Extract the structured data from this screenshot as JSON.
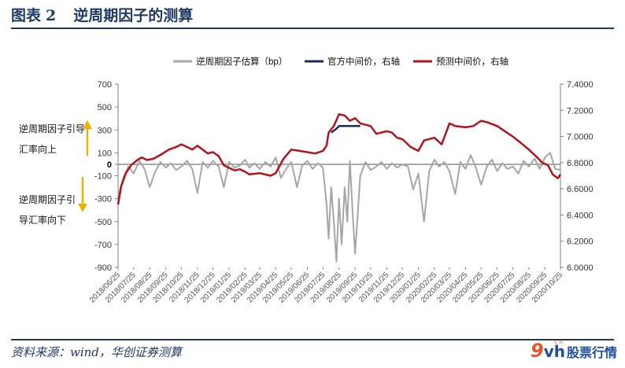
{
  "figure": {
    "label": "图表",
    "number": "2",
    "title": "逆周期因子的测算"
  },
  "source": "资料来源：wind，华创证券测算",
  "brand": {
    "logo_mark": "9",
    "logo_vh": "vh",
    "logo_cn": ".cn",
    "name": "股票行情"
  },
  "annotations": {
    "up": [
      "逆周期因子引导",
      "汇率向上"
    ],
    "down": [
      "逆周期因子引",
      "导汇率向下"
    ]
  },
  "colors": {
    "factor": "#a6a6a6",
    "official": "#1f2a5c",
    "forecast": "#b3121f",
    "arrow": "#f0b000"
  },
  "chart_data": {
    "type": "line",
    "title": "",
    "legend_position": "top",
    "grid": false,
    "dual_axis": true,
    "ylim": [
      -900,
      700
    ],
    "y_ticks": [
      -900,
      -700,
      -500,
      -300,
      -100,
      0,
      100,
      300,
      500,
      700
    ],
    "y2lim": [
      6.0,
      7.4
    ],
    "y2_ticks": [
      "6.0000",
      "6.2000",
      "6.4000",
      "6.6000",
      "6.8000",
      "7.0000",
      "7.2000",
      "7.4000"
    ],
    "x_ticks": [
      "2018/06/25",
      "2018/07/25",
      "2018/08/25",
      "2018/09/25",
      "2018/10/25",
      "2018/11/25",
      "2018/12/25",
      "2019/01/25",
      "2019/02/25",
      "2019/03/25",
      "2019/04/25",
      "2019/05/25",
      "2019/06/25",
      "2019/07/25",
      "2019/08/25",
      "2019/09/25",
      "2019/10/25",
      "2019/11/25",
      "2019/12/25",
      "2020/01/25",
      "2020/02/25",
      "2020/03/25",
      "2020/04/25",
      "2020/05/25",
      "2020/06/25",
      "2020/07/25",
      "2020/08/25",
      "2020/09/25",
      "2020/10/25"
    ],
    "x_range": [
      "2018/06/25",
      "2020/10/25"
    ],
    "series": [
      {
        "name": "逆周期因子估算（bp）",
        "axis": "left",
        "color_key": "factor",
        "points": [
          [
            "2018/06/25",
            -280
          ],
          [
            "2018/07/05",
            -120
          ],
          [
            "2018/07/15",
            -20
          ],
          [
            "2018/07/25",
            -80
          ],
          [
            "2018/08/05",
            30
          ],
          [
            "2018/08/15",
            -40
          ],
          [
            "2018/08/25",
            -200
          ],
          [
            "2018/09/05",
            -60
          ],
          [
            "2018/09/15",
            20
          ],
          [
            "2018/09/25",
            -30
          ],
          [
            "2018/10/05",
            10
          ],
          [
            "2018/10/15",
            -50
          ],
          [
            "2018/10/25",
            -20
          ],
          [
            "2018/11/05",
            30
          ],
          [
            "2018/11/15",
            -40
          ],
          [
            "2018/11/25",
            -250
          ],
          [
            "2018/12/05",
            20
          ],
          [
            "2018/12/15",
            -30
          ],
          [
            "2018/12/25",
            30
          ],
          [
            "2019/01/05",
            -20
          ],
          [
            "2019/01/15",
            -200
          ],
          [
            "2019/01/25",
            20
          ],
          [
            "2019/02/05",
            -30
          ],
          [
            "2019/02/15",
            -10
          ],
          [
            "2019/02/25",
            40
          ],
          [
            "2019/03/05",
            -30
          ],
          [
            "2019/03/15",
            10
          ],
          [
            "2019/03/25",
            -40
          ],
          [
            "2019/04/05",
            20
          ],
          [
            "2019/04/15",
            -20
          ],
          [
            "2019/04/25",
            60
          ],
          [
            "2019/05/05",
            -120
          ],
          [
            "2019/05/15",
            -40
          ],
          [
            "2019/05/25",
            20
          ],
          [
            "2019/06/05",
            -200
          ],
          [
            "2019/06/15",
            -10
          ],
          [
            "2019/06/25",
            30
          ],
          [
            "2019/07/05",
            -40
          ],
          [
            "2019/07/15",
            10
          ],
          [
            "2019/07/25",
            -30
          ],
          [
            "2019/08/01",
            -350
          ],
          [
            "2019/08/05",
            -650
          ],
          [
            "2019/08/10",
            -200
          ],
          [
            "2019/08/15",
            -500
          ],
          [
            "2019/08/20",
            -850
          ],
          [
            "2019/08/25",
            -300
          ],
          [
            "2019/08/30",
            -700
          ],
          [
            "2019/09/05",
            -200
          ],
          [
            "2019/09/10",
            -500
          ],
          [
            "2019/09/15",
            30
          ],
          [
            "2019/09/20",
            -400
          ],
          [
            "2019/09/25",
            -780
          ],
          [
            "2019/10/05",
            -100
          ],
          [
            "2019/10/15",
            20
          ],
          [
            "2019/10/25",
            -50
          ],
          [
            "2019/11/05",
            -20
          ],
          [
            "2019/11/15",
            20
          ],
          [
            "2019/11/25",
            -40
          ],
          [
            "2019/12/05",
            10
          ],
          [
            "2019/12/15",
            -30
          ],
          [
            "2019/12/25",
            0
          ],
          [
            "2020/01/05",
            -20
          ],
          [
            "2020/01/15",
            -220
          ],
          [
            "2020/01/25",
            -80
          ],
          [
            "2020/02/05",
            -500
          ],
          [
            "2020/02/15",
            -60
          ],
          [
            "2020/02/25",
            40
          ],
          [
            "2020/03/05",
            -20
          ],
          [
            "2020/03/15",
            20
          ],
          [
            "2020/03/25",
            -60
          ],
          [
            "2020/04/05",
            -260
          ],
          [
            "2020/04/15",
            20
          ],
          [
            "2020/04/25",
            -40
          ],
          [
            "2020/05/05",
            80
          ],
          [
            "2020/05/15",
            -30
          ],
          [
            "2020/05/25",
            -180
          ],
          [
            "2020/06/05",
            -20
          ],
          [
            "2020/06/15",
            40
          ],
          [
            "2020/06/25",
            -60
          ],
          [
            "2020/07/05",
            10
          ],
          [
            "2020/07/15",
            -40
          ],
          [
            "2020/07/25",
            -20
          ],
          [
            "2020/08/05",
            -80
          ],
          [
            "2020/08/15",
            30
          ],
          [
            "2020/08/25",
            -20
          ],
          [
            "2020/09/05",
            50
          ],
          [
            "2020/09/15",
            -40
          ],
          [
            "2020/09/25",
            60
          ],
          [
            "2020/10/05",
            100
          ],
          [
            "2020/10/15",
            -40
          ],
          [
            "2020/10/25",
            -50
          ]
        ]
      },
      {
        "name": "官方中间价，右轴",
        "axis": "right",
        "color_key": "official",
        "points": [
          [
            "2019/08/10",
            7.03
          ],
          [
            "2019/08/20",
            7.06
          ],
          [
            "2019/08/25",
            7.08
          ],
          [
            "2019/09/05",
            7.08
          ],
          [
            "2019/09/15",
            7.08
          ],
          [
            "2019/09/25",
            7.08
          ],
          [
            "2019/10/05",
            7.08
          ]
        ]
      },
      {
        "name": "预测中间价，右轴",
        "axis": "right",
        "color_key": "forecast",
        "points": [
          [
            "2018/06/25",
            6.48
          ],
          [
            "2018/07/01",
            6.62
          ],
          [
            "2018/07/10",
            6.72
          ],
          [
            "2018/07/20",
            6.78
          ],
          [
            "2018/08/01",
            6.82
          ],
          [
            "2018/08/10",
            6.84
          ],
          [
            "2018/08/20",
            6.82
          ],
          [
            "2018/09/01",
            6.83
          ],
          [
            "2018/09/15",
            6.86
          ],
          [
            "2018/10/01",
            6.9
          ],
          [
            "2018/10/15",
            6.92
          ],
          [
            "2018/10/25",
            6.94
          ],
          [
            "2018/11/05",
            6.92
          ],
          [
            "2018/11/15",
            6.9
          ],
          [
            "2018/11/25",
            6.93
          ],
          [
            "2018/12/05",
            6.9
          ],
          [
            "2018/12/15",
            6.87
          ],
          [
            "2018/12/25",
            6.88
          ],
          [
            "2019/01/05",
            6.85
          ],
          [
            "2019/01/15",
            6.78
          ],
          [
            "2019/01/25",
            6.76
          ],
          [
            "2019/02/05",
            6.74
          ],
          [
            "2019/02/15",
            6.75
          ],
          [
            "2019/02/25",
            6.73
          ],
          [
            "2019/03/05",
            6.71
          ],
          [
            "2019/03/25",
            6.72
          ],
          [
            "2019/04/15",
            6.7
          ],
          [
            "2019/04/25",
            6.72
          ],
          [
            "2019/05/10",
            6.83
          ],
          [
            "2019/05/25",
            6.9
          ],
          [
            "2019/06/10",
            6.89
          ],
          [
            "2019/06/25",
            6.88
          ],
          [
            "2019/07/10",
            6.87
          ],
          [
            "2019/07/25",
            6.89
          ],
          [
            "2019/08/01",
            6.93
          ],
          [
            "2019/08/05",
            7.03
          ],
          [
            "2019/08/15",
            7.08
          ],
          [
            "2019/08/25",
            7.17
          ],
          [
            "2019/09/05",
            7.16
          ],
          [
            "2019/09/15",
            7.12
          ],
          [
            "2019/09/25",
            7.14
          ],
          [
            "2019/10/05",
            7.1
          ],
          [
            "2019/10/25",
            7.08
          ],
          [
            "2019/11/05",
            7.02
          ],
          [
            "2019/11/25",
            7.04
          ],
          [
            "2019/12/05",
            7.03
          ],
          [
            "2019/12/15",
            6.99
          ],
          [
            "2019/12/25",
            6.98
          ],
          [
            "2020/01/10",
            6.92
          ],
          [
            "2020/01/25",
            6.89
          ],
          [
            "2020/02/05",
            6.97
          ],
          [
            "2020/02/25",
            6.99
          ],
          [
            "2020/03/10",
            6.94
          ],
          [
            "2020/03/25",
            7.1
          ],
          [
            "2020/04/05",
            7.08
          ],
          [
            "2020/04/25",
            7.07
          ],
          [
            "2020/05/10",
            7.08
          ],
          [
            "2020/05/25",
            7.12
          ],
          [
            "2020/06/05",
            7.11
          ],
          [
            "2020/06/25",
            7.08
          ],
          [
            "2020/07/10",
            7.04
          ],
          [
            "2020/07/25",
            7.0
          ],
          [
            "2020/08/10",
            6.95
          ],
          [
            "2020/08/25",
            6.9
          ],
          [
            "2020/09/10",
            6.84
          ],
          [
            "2020/09/20",
            6.8
          ],
          [
            "2020/10/01",
            6.78
          ],
          [
            "2020/10/10",
            6.71
          ],
          [
            "2020/10/20",
            6.68
          ],
          [
            "2020/10/25",
            6.71
          ]
        ]
      }
    ]
  }
}
